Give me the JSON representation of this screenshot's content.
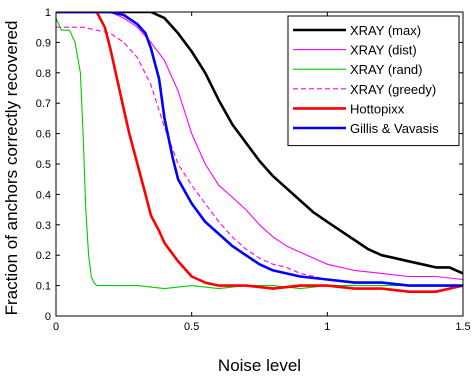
{
  "chart_data": {
    "type": "line",
    "title": "",
    "xlabel": "Noise level",
    "ylabel": "Fraction of anchors correctly recovered",
    "xlim": [
      0,
      1.5
    ],
    "ylim": [
      0,
      1
    ],
    "xticks": [
      0,
      0.5,
      1,
      1.5
    ],
    "xtick_labels": [
      "0",
      "0.5",
      "1",
      "1.5"
    ],
    "yticks": [
      0,
      0.1,
      0.2,
      0.3,
      0.4,
      0.5,
      0.6,
      0.7,
      0.8,
      0.9,
      1
    ],
    "ytick_labels": [
      "0",
      "0.1",
      "0.2",
      "0.3",
      "0.4",
      "0.5",
      "0.6",
      "0.7",
      "0.8",
      "0.9",
      "1"
    ],
    "grid": false,
    "legend_position": "top-right",
    "series": [
      {
        "name": "XRAY (max)",
        "color": "#000000",
        "style": "solid",
        "width": "thick",
        "x": [
          0,
          0.1,
          0.2,
          0.3,
          0.35,
          0.4,
          0.45,
          0.5,
          0.55,
          0.6,
          0.65,
          0.7,
          0.75,
          0.8,
          0.85,
          0.9,
          0.95,
          1.0,
          1.05,
          1.1,
          1.15,
          1.2,
          1.25,
          1.3,
          1.35,
          1.4,
          1.45,
          1.5
        ],
        "y": [
          1,
          1,
          1,
          1,
          1,
          0.98,
          0.93,
          0.87,
          0.8,
          0.71,
          0.63,
          0.57,
          0.51,
          0.46,
          0.42,
          0.38,
          0.34,
          0.31,
          0.28,
          0.25,
          0.22,
          0.2,
          0.19,
          0.18,
          0.17,
          0.16,
          0.16,
          0.14
        ]
      },
      {
        "name": "XRAY (dist)",
        "color": "#ff00ff",
        "style": "solid",
        "width": "thin",
        "x": [
          0,
          0.1,
          0.2,
          0.25,
          0.3,
          0.35,
          0.4,
          0.45,
          0.5,
          0.55,
          0.6,
          0.65,
          0.7,
          0.75,
          0.8,
          0.85,
          0.9,
          0.95,
          1.0,
          1.1,
          1.2,
          1.3,
          1.4,
          1.5
        ],
        "y": [
          1,
          1,
          1,
          0.98,
          0.95,
          0.9,
          0.84,
          0.74,
          0.6,
          0.5,
          0.43,
          0.39,
          0.35,
          0.3,
          0.26,
          0.23,
          0.21,
          0.19,
          0.17,
          0.15,
          0.14,
          0.13,
          0.13,
          0.12
        ]
      },
      {
        "name": "XRAY (rand)",
        "color": "#00cc00",
        "style": "solid",
        "width": "thin",
        "x": [
          0,
          0.02,
          0.05,
          0.07,
          0.09,
          0.1,
          0.11,
          0.12,
          0.13,
          0.14,
          0.15,
          0.2,
          0.3,
          0.4,
          0.5,
          0.6,
          0.7,
          0.8,
          0.9,
          1.0,
          1.1,
          1.2,
          1.3,
          1.4,
          1.5
        ],
        "y": [
          0.98,
          0.94,
          0.94,
          0.9,
          0.8,
          0.6,
          0.35,
          0.2,
          0.13,
          0.11,
          0.1,
          0.1,
          0.1,
          0.09,
          0.1,
          0.09,
          0.1,
          0.1,
          0.09,
          0.1,
          0.1,
          0.1,
          0.1,
          0.1,
          0.1
        ]
      },
      {
        "name": "XRAY (greedy)",
        "color": "#ff00ff",
        "style": "dashed",
        "width": "thin",
        "x": [
          0,
          0.05,
          0.1,
          0.15,
          0.2,
          0.25,
          0.3,
          0.35,
          0.4,
          0.45,
          0.5,
          0.55,
          0.6,
          0.65,
          0.7,
          0.75,
          0.8,
          0.85,
          0.9,
          1.0,
          1.1,
          1.2,
          1.3,
          1.4,
          1.5
        ],
        "y": [
          0.95,
          0.95,
          0.95,
          0.94,
          0.93,
          0.9,
          0.85,
          0.76,
          0.62,
          0.5,
          0.43,
          0.37,
          0.31,
          0.26,
          0.22,
          0.19,
          0.17,
          0.16,
          0.14,
          0.12,
          0.11,
          0.11,
          0.1,
          0.1,
          0.1
        ]
      },
      {
        "name": "Hottopixx",
        "color": "#ff0000",
        "style": "solid",
        "width": "thick",
        "x": [
          0,
          0.1,
          0.15,
          0.18,
          0.2,
          0.22,
          0.25,
          0.27,
          0.3,
          0.33,
          0.35,
          0.38,
          0.4,
          0.45,
          0.5,
          0.55,
          0.6,
          0.7,
          0.8,
          0.9,
          1.0,
          1.1,
          1.2,
          1.3,
          1.4,
          1.5
        ],
        "y": [
          1,
          1,
          1,
          0.95,
          0.88,
          0.8,
          0.68,
          0.6,
          0.5,
          0.4,
          0.33,
          0.28,
          0.24,
          0.18,
          0.13,
          0.11,
          0.1,
          0.1,
          0.09,
          0.1,
          0.1,
          0.09,
          0.09,
          0.08,
          0.08,
          0.1
        ]
      },
      {
        "name": "Gillis & Vavasis",
        "color": "#0000ff",
        "style": "solid",
        "width": "thick",
        "x": [
          0,
          0.1,
          0.2,
          0.25,
          0.3,
          0.33,
          0.35,
          0.38,
          0.4,
          0.43,
          0.45,
          0.5,
          0.55,
          0.6,
          0.65,
          0.7,
          0.75,
          0.8,
          0.9,
          1.0,
          1.1,
          1.2,
          1.3,
          1.4,
          1.5
        ],
        "y": [
          1,
          1,
          1,
          0.99,
          0.96,
          0.93,
          0.88,
          0.78,
          0.65,
          0.52,
          0.45,
          0.37,
          0.31,
          0.27,
          0.23,
          0.2,
          0.17,
          0.15,
          0.13,
          0.12,
          0.11,
          0.11,
          0.1,
          0.1,
          0.1
        ]
      }
    ]
  }
}
